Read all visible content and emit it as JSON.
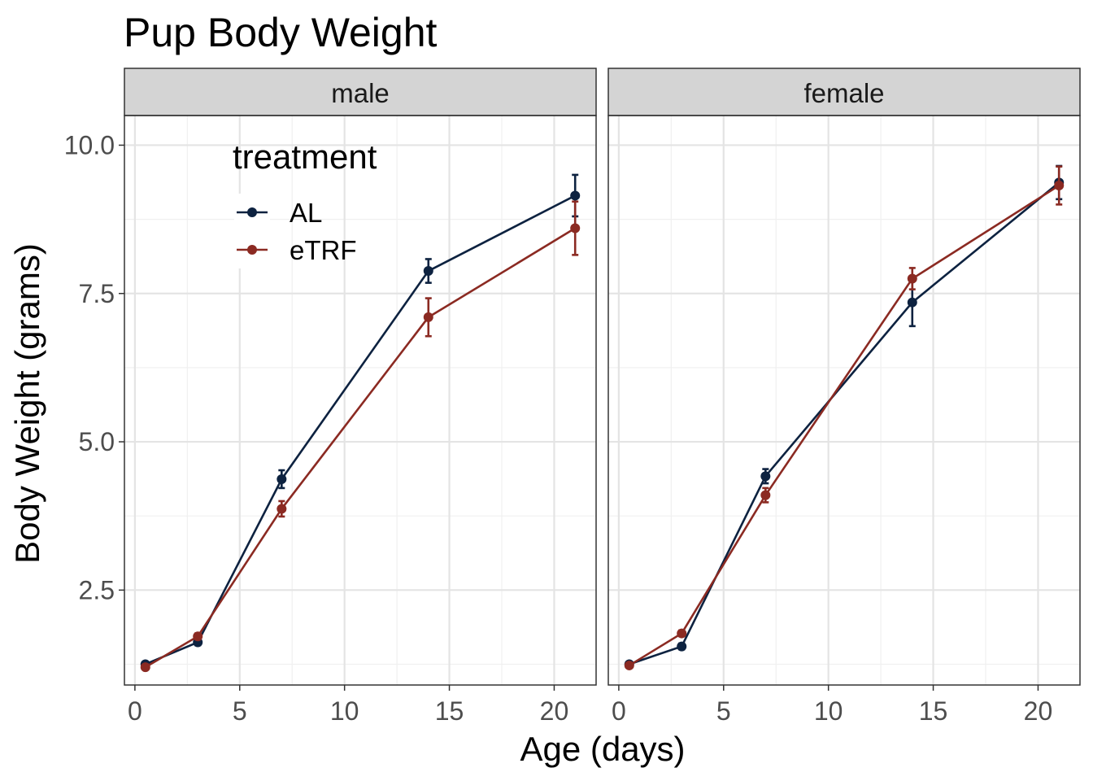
{
  "chart_data": {
    "type": "line",
    "title": "Pup Body Weight",
    "xlabel": "Age (days)",
    "ylabel": "Body Weight (grams)",
    "xlim": [
      -0.5,
      22
    ],
    "ylim": [
      0.9,
      10.5
    ],
    "xticks": [
      0,
      5,
      10,
      15,
      20
    ],
    "yticks": [
      2.5,
      5.0,
      7.5,
      10.0
    ],
    "ytick_labels": [
      "2.5",
      "5.0",
      "7.5",
      "10.0"
    ],
    "grid": true,
    "legend": {
      "title": "treatment",
      "placement": "top-left inside first panel",
      "entries": [
        "AL",
        "eTRF"
      ]
    },
    "colors": {
      "AL": "#0d2240",
      "eTRF": "#8b2a22"
    },
    "facets": [
      {
        "label": "male",
        "series": [
          {
            "name": "AL",
            "x": [
              0.5,
              3,
              7,
              14,
              21
            ],
            "y": [
              1.25,
              1.62,
              4.37,
              7.88,
              9.15
            ],
            "err": [
              0.03,
              0.05,
              0.15,
              0.2,
              0.35
            ]
          },
          {
            "name": "eTRF",
            "x": [
              0.5,
              3,
              7,
              14,
              21
            ],
            "y": [
              1.2,
              1.72,
              3.87,
              7.1,
              8.6
            ],
            "err": [
              0.03,
              0.05,
              0.13,
              0.32,
              0.45
            ]
          }
        ]
      },
      {
        "label": "female",
        "series": [
          {
            "name": "AL",
            "x": [
              0.5,
              3,
              7,
              14,
              21
            ],
            "y": [
              1.25,
              1.55,
              4.42,
              7.35,
              9.37
            ],
            "err": [
              0.03,
              0.05,
              0.12,
              0.4,
              0.28
            ]
          },
          {
            "name": "eTRF",
            "x": [
              0.5,
              3,
              7,
              14,
              21
            ],
            "y": [
              1.23,
              1.77,
              4.1,
              7.75,
              9.32
            ],
            "err": [
              0.03,
              0.05,
              0.12,
              0.18,
              0.32
            ]
          }
        ]
      }
    ]
  }
}
